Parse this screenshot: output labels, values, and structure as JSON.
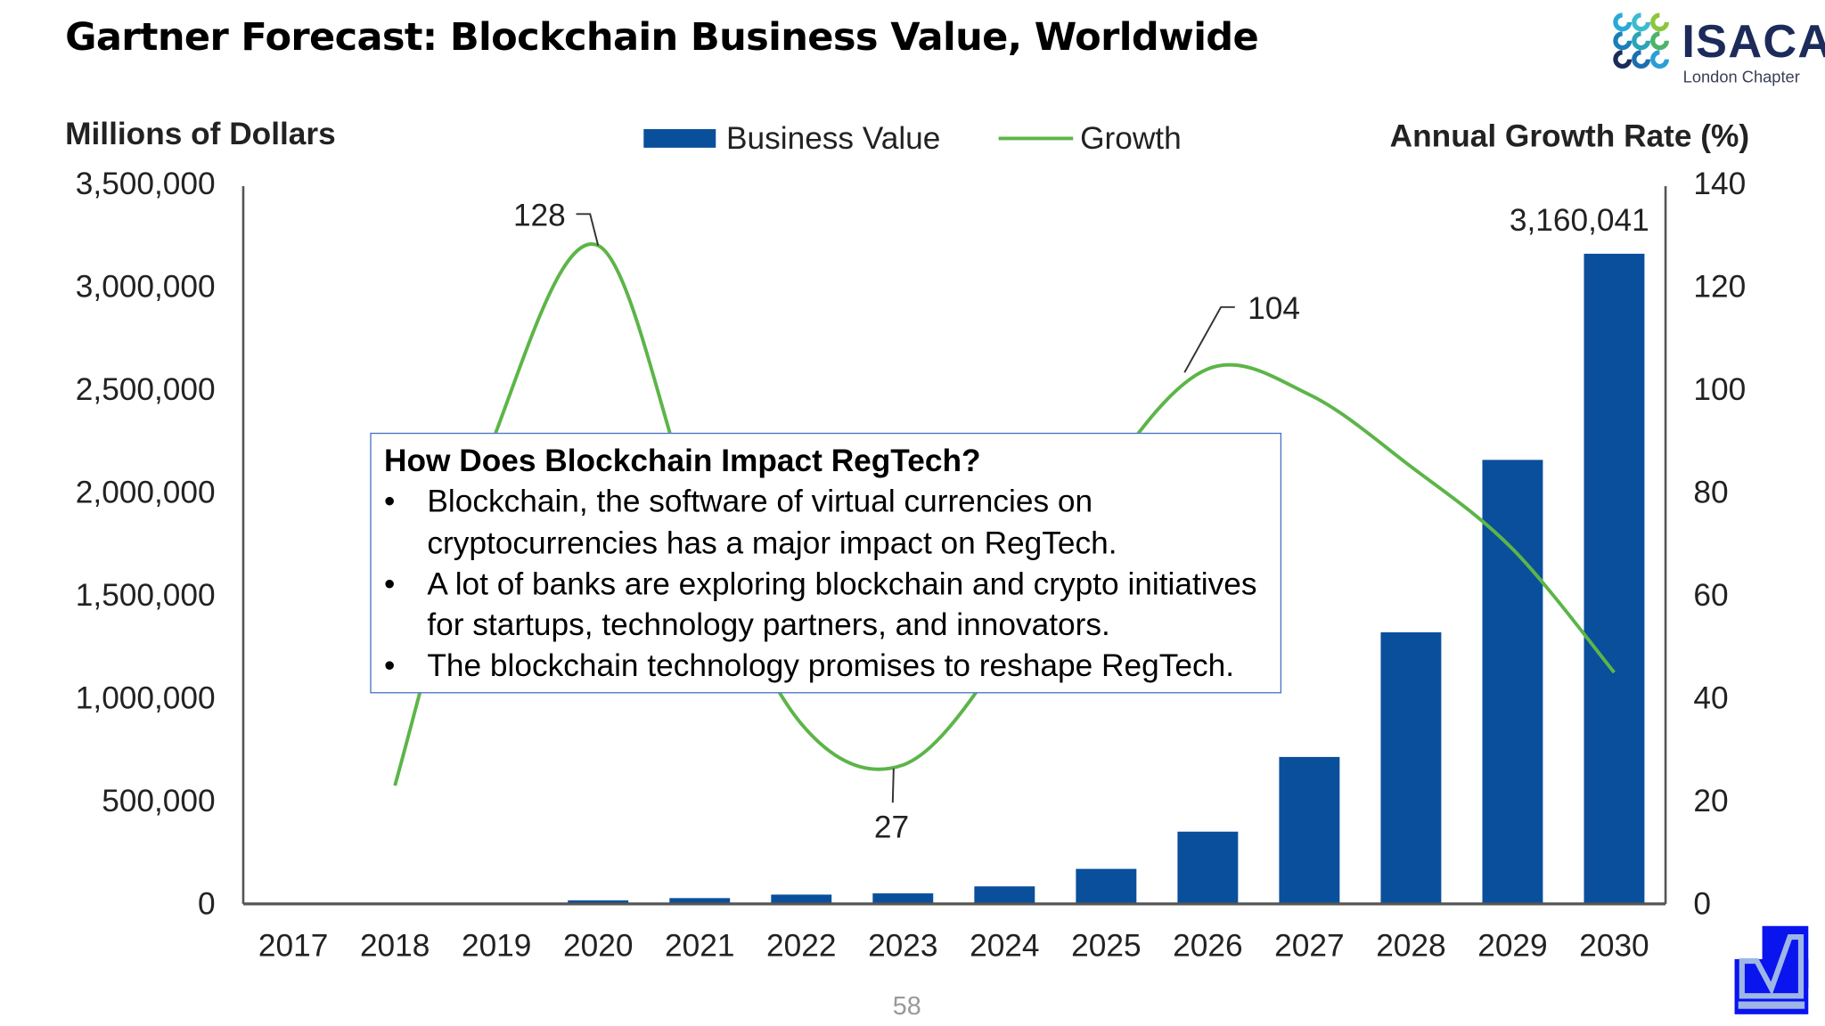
{
  "title": "Gartner Forecast: Blockchain Business Value, Worldwide",
  "logo": {
    "name": "ISACA",
    "subtitle": "London Chapter"
  },
  "page_number": "58",
  "info_box": {
    "heading": "How Does Blockchain Impact RegTech?",
    "bullets": [
      "Blockchain, the software of virtual currencies on cryptocurrencies has a major impact on RegTech.",
      "A lot of banks are exploring blockchain and crypto initiatives for startups, technology partners, and innovators.",
      "The blockchain technology promises to reshape RegTech."
    ],
    "border_color": "#4472c4"
  },
  "chart_data": {
    "type": "bar+line",
    "categories": [
      "2017",
      "2018",
      "2019",
      "2020",
      "2021",
      "2022",
      "2023",
      "2024",
      "2025",
      "2026",
      "2027",
      "2028",
      "2029",
      "2030"
    ],
    "ylabel": "Millions of Dollars",
    "y2label": "Annual Growth Rate (%)",
    "ylim": [
      0,
      3500000
    ],
    "y2lim": [
      0,
      140
    ],
    "yticks": [
      "0",
      "500,000",
      "1,000,000",
      "1,500,000",
      "2,000,000",
      "2,500,000",
      "3,000,000",
      "3,500,000"
    ],
    "y2ticks": [
      "0",
      "20",
      "40",
      "60",
      "80",
      "100",
      "120",
      "140"
    ],
    "legend_position": "top",
    "grid": false,
    "series": [
      {
        "name": "Business Value",
        "axis": "left",
        "kind": "bar",
        "color": "#0a4f9c",
        "values": [
          0,
          0,
          0,
          17000,
          28000,
          45000,
          51000,
          85000,
          170000,
          351000,
          714000,
          1320000,
          2158000,
          3160041
        ]
      },
      {
        "name": "Growth",
        "axis": "right",
        "kind": "line",
        "color": "#5cb548",
        "values": [
          null,
          23,
          92,
          128,
          74,
          35,
          27,
          49,
          83,
          104,
          99,
          85,
          69,
          45
        ]
      }
    ],
    "annotations": [
      {
        "text": "128",
        "category": "2020",
        "series": "Growth"
      },
      {
        "text": "27",
        "category": "2023",
        "series": "Growth"
      },
      {
        "text": "104",
        "category": "2026",
        "series": "Growth"
      },
      {
        "text": "3,160,041",
        "category": "2030",
        "series": "Business Value"
      }
    ]
  }
}
